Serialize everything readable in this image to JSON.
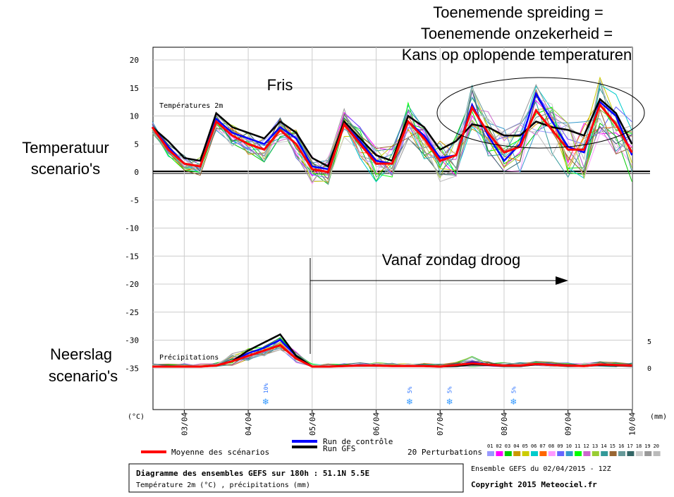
{
  "annotations": {
    "spread_line1": "Toenemende spreiding =",
    "spread_line2": "Toenemende onzekerheid =",
    "spread_line3": "Kans op oplopende temperaturen",
    "fris": "Fris",
    "temp_line1": "Temperatuur",
    "temp_line2": "scenario's",
    "precip_line1": "Neerslag",
    "precip_line2": "scenario's",
    "droog": "Vanaf zondag droog"
  },
  "chart_data": {
    "type": "line",
    "temp_label": "Températures 2m",
    "precip_label": "Précipitations",
    "y_axis_unit": "(°C)",
    "right_axis_unit": "(mm)",
    "y_ticks": [
      "20",
      "15",
      "10",
      "5",
      "0",
      "-5",
      "-10",
      "-15",
      "-20",
      "-25",
      "-30",
      "-35"
    ],
    "y_tick_values": [
      20,
      15,
      10,
      5,
      0,
      -5,
      -10,
      -15,
      -20,
      -25,
      -30,
      -35
    ],
    "ylim": [
      -42,
      23
    ],
    "right_ticks": [
      "5",
      "0"
    ],
    "date_labels": [
      "03/04",
      "04/04",
      "05/04",
      "06/04",
      "07/04",
      "08/04",
      "09/04",
      "10/04"
    ],
    "snow_markers": [
      {
        "x": 42,
        "label": "10%"
      },
      {
        "x": 96,
        "label": "5%"
      },
      {
        "x": 111,
        "label": "5%"
      },
      {
        "x": 135,
        "label": "5%"
      }
    ],
    "x": [
      0,
      6,
      12,
      18,
      24,
      30,
      36,
      42,
      48,
      54,
      60,
      66,
      72,
      78,
      84,
      90,
      96,
      102,
      108,
      114,
      120,
      126,
      132,
      138,
      144,
      150,
      156,
      162,
      168,
      174,
      180
    ],
    "series": [
      {
        "name": "Moyenne des scénarios",
        "color": "#ff0000",
        "values": [
          8,
          4,
          1.5,
          1,
          9,
          6.5,
          5,
          4,
          7.5,
          5,
          0.5,
          0,
          8.5,
          5,
          1.5,
          1.5,
          9,
          6,
          2,
          3,
          11.5,
          7,
          3.5,
          4.5,
          11,
          7.5,
          4,
          4,
          12,
          8.5,
          3.5
        ],
        "precip": [
          0,
          0,
          0,
          0,
          0.2,
          1,
          2,
          3,
          4,
          1.5,
          0,
          0,
          0.1,
          0.2,
          0.2,
          0.1,
          0.1,
          0.1,
          0,
          0.3,
          0.6,
          0.4,
          0.2,
          0.2,
          0.5,
          0.3,
          0.2,
          0.1,
          0.4,
          0.3,
          0.2
        ]
      },
      {
        "name": "Run de contrôle",
        "color": "#0000ff",
        "values": [
          8,
          4.5,
          1.5,
          1,
          9.5,
          7,
          6,
          5,
          8,
          6,
          1,
          0.5,
          8.5,
          5.5,
          2,
          1.5,
          9,
          6.5,
          2.5,
          3,
          12,
          6.5,
          2,
          5,
          14,
          9,
          4.5,
          3.5,
          12.5,
          10,
          3
        ],
        "precip": [
          0,
          0,
          0,
          0,
          0.2,
          1,
          2.5,
          3.5,
          5,
          2,
          0,
          0,
          0.1,
          0.2,
          0.2,
          0.1,
          0.1,
          0.1,
          0,
          0.2,
          0.8,
          0.4,
          0.2,
          0.1,
          0.5,
          0.4,
          0.2,
          0.1,
          0.4,
          0.3,
          0.2
        ]
      },
      {
        "name": "Run GFS",
        "color": "#000000",
        "values": [
          8,
          5.5,
          2.5,
          2,
          10.5,
          8,
          7,
          6,
          9,
          7,
          2.5,
          1,
          9,
          6,
          3,
          2,
          10,
          8,
          4,
          5.5,
          8.5,
          8,
          6.5,
          6.5,
          9,
          8,
          7.5,
          6.5,
          13,
          10.5,
          5
        ],
        "precip": [
          0,
          0,
          0,
          0,
          0.2,
          1,
          3,
          4.5,
          6,
          2,
          0,
          0,
          0.1,
          0.2,
          0.2,
          0.1,
          0.1,
          0.1,
          0,
          0.1,
          0.4,
          0.3,
          0.1,
          0.1,
          0.4,
          0.3,
          0.1,
          0.1,
          0.3,
          0.2,
          0.1
        ]
      }
    ],
    "perturbations_label": "20 Perturbations",
    "perturbations": [
      "01",
      "02",
      "03",
      "04",
      "05",
      "06",
      "07",
      "08",
      "09",
      "10",
      "11",
      "12",
      "13",
      "14",
      "15",
      "16",
      "17",
      "18",
      "19",
      "20"
    ],
    "perturbation_colors": [
      "#9999ff",
      "#ff00ff",
      "#00cc00",
      "#cc9900",
      "#cccc00",
      "#00cccc",
      "#ff6600",
      "#ff99ff",
      "#6666ff",
      "#3399cc",
      "#00ff00",
      "#cc66cc",
      "#99cc33",
      "#339999",
      "#996633",
      "#669999",
      "#336666",
      "#cccccc",
      "#999999",
      "#bbbbbb"
    ]
  },
  "footer": {
    "title": "Diagramme des ensembles GEFS sur 180h : 51.1N 5.5E",
    "subtitle": "Température 2m (°C) , précipitations (mm)",
    "run_info": "Ensemble GEFS du 02/04/2015 - 12Z",
    "copyright": "Copyright 2015 Meteociel.fr"
  }
}
